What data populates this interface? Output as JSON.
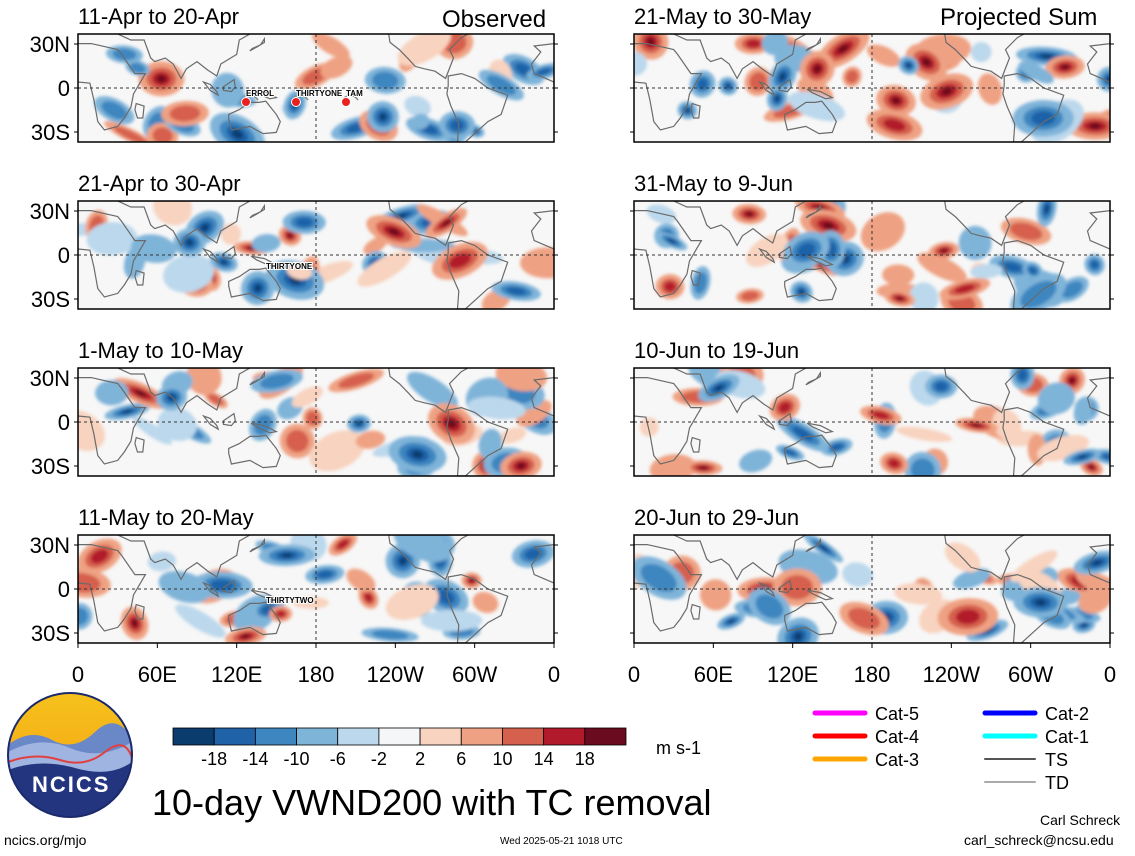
{
  "header": {
    "left_label": "Observed",
    "right_label": "Projected Sum"
  },
  "chart_data": {
    "type": "heatmap",
    "variable": "10-day VWND200 with TC removal",
    "units": "m s-1",
    "x_tick_labels": [
      "0",
      "60E",
      "120E",
      "180",
      "120W",
      "60W",
      "0"
    ],
    "y_tick_labels": [
      "30N",
      "0",
      "30S"
    ],
    "colorbar": {
      "tick_labels": [
        "-18",
        "-14",
        "-10",
        "-6",
        "-2",
        "2",
        "6",
        "10",
        "14",
        "18"
      ],
      "colors": [
        "#0b3c6e",
        "#1f62a8",
        "#3d86c0",
        "#7fb4d9",
        "#bcd8ec",
        "#f4f6f8",
        "#f8d3bf",
        "#efa283",
        "#d6604e",
        "#b21a2c",
        "#6b0b1f"
      ]
    },
    "panels": [
      {
        "title": "11-Apr to 20-Apr",
        "column": "observed",
        "storms": [
          "ERROL",
          "THIRTYONE",
          "TAM"
        ]
      },
      {
        "title": "21-Apr to 30-Apr",
        "column": "observed",
        "storms": [
          "THIRTYONE"
        ]
      },
      {
        "title": "1-May to 10-May",
        "column": "observed",
        "storms": []
      },
      {
        "title": "11-May to 20-May",
        "column": "observed",
        "storms": [
          "THIRTYTWO"
        ]
      },
      {
        "title": "21-May to 30-May",
        "column": "projected",
        "storms": []
      },
      {
        "title": "31-May to 9-Jun",
        "column": "projected",
        "storms": []
      },
      {
        "title": "10-Jun to 19-Jun",
        "column": "projected",
        "storms": []
      },
      {
        "title": "20-Jun to 29-Jun",
        "column": "projected",
        "storms": []
      }
    ]
  },
  "legend": {
    "items": [
      {
        "label": "Cat-5",
        "color": "#ff00ff"
      },
      {
        "label": "Cat-4",
        "color": "#ff0000"
      },
      {
        "label": "Cat-3",
        "color": "#ffa500"
      },
      {
        "label": "Cat-2",
        "color": "#0000ff"
      },
      {
        "label": "Cat-1",
        "color": "#00ffff"
      },
      {
        "label": "TS",
        "color": "#555555"
      },
      {
        "label": "TD",
        "color": "#aaaaaa"
      }
    ]
  },
  "logo": {
    "text": "NCICS"
  },
  "footer": {
    "title": "10-day VWND200 with TC removal",
    "url": "ncics.org/mjo",
    "timestamp": "Wed 2025-05-21 1018 UTC",
    "author": "Carl Schreck",
    "email": "carl_schreck@ncsu.edu"
  }
}
